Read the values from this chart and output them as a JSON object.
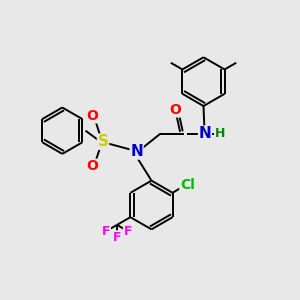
{
  "background_color": "#e8e8e8",
  "bond_color": "#000000",
  "atom_colors": {
    "N": "#0000cc",
    "O": "#ff0000",
    "S": "#cccc00",
    "Cl": "#00bb00",
    "F": "#ff00ff",
    "H": "#008800",
    "C": "#000000"
  },
  "figsize": [
    3.0,
    3.0
  ],
  "dpi": 100,
  "lw": 1.4,
  "r": 0.72
}
